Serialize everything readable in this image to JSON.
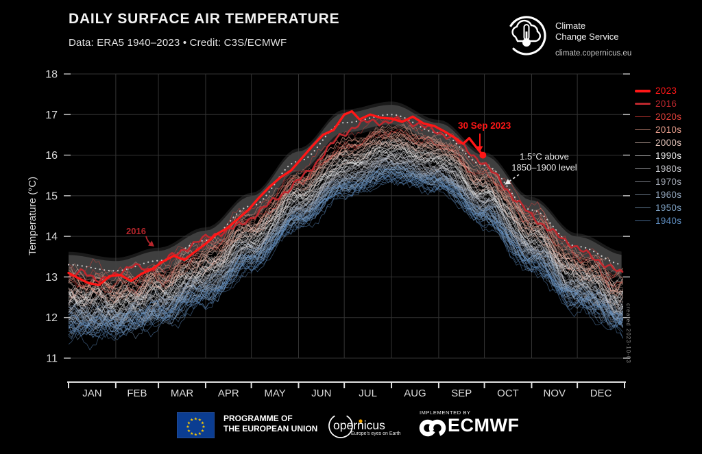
{
  "header": {
    "title": "DAILY SURFACE AIR TEMPERATURE",
    "subtitle": "Data: ERA5 1940–2023 • Credit: C3S/ECMWF"
  },
  "branding": {
    "logo_name": "Climate Change Service",
    "logo_line1": "Climate",
    "logo_line2": "Change Service",
    "url": "climate.copernicus.eu"
  },
  "watermark": "created 2023-10-03",
  "footer": {
    "eu_label_line1": "PROGRAMME OF",
    "eu_label_line2": "THE EUROPEAN UNION",
    "copernicus_name": "opernicus",
    "copernicus_tagline": "Europe's eyes on Earth",
    "implemented_by": "IMPLEMENTED BY",
    "ecmwf_name": "ECMWF"
  },
  "chart_data": {
    "type": "line",
    "title": "DAILY SURFACE AIR TEMPERATURE",
    "xlabel": "",
    "ylabel": "Temperature (°C)",
    "ylim": [
      11,
      18
    ],
    "yticks": [
      11,
      12,
      13,
      14,
      15,
      16,
      17,
      18
    ],
    "grid": true,
    "x_tick_labels": [
      "JAN",
      "FEB",
      "MAR",
      "APR",
      "MAY",
      "JUN",
      "JUL",
      "AUG",
      "SEP",
      "OCT",
      "NOV",
      "DEC"
    ],
    "month_start_days": [
      0,
      31,
      59,
      90,
      120,
      151,
      181,
      212,
      243,
      273,
      304,
      334,
      365
    ],
    "legend_position": "right",
    "legend": [
      {
        "label": "2023",
        "color": "#ff1717",
        "line_weight": 4
      },
      {
        "label": "2016",
        "color": "#bb272d",
        "line_weight": 3
      },
      {
        "label": "2020s",
        "color": "#e2403a",
        "line_weight": 1
      },
      {
        "label": "2010s",
        "color": "#e59c8a",
        "line_weight": 1
      },
      {
        "label": "2000s",
        "color": "#e2c3b9",
        "line_weight": 1
      },
      {
        "label": "1990s",
        "color": "#ededed",
        "line_weight": 1
      },
      {
        "label": "1980s",
        "color": "#c8c9ce",
        "line_weight": 1
      },
      {
        "label": "1970s",
        "color": "#a4aab6",
        "line_weight": 1
      },
      {
        "label": "1960s",
        "color": "#93a6bd",
        "line_weight": 1
      },
      {
        "label": "1950s",
        "color": "#7fa3c6",
        "line_weight": 1
      },
      {
        "label": "1940s",
        "color": "#5f8ec2",
        "line_weight": 1
      }
    ],
    "band_1p5": {
      "label": "1.5°C above 1850–1900 level",
      "anchors_day": [
        0,
        31,
        59,
        90,
        120,
        151,
        181,
        212,
        243,
        273,
        304,
        334,
        365
      ],
      "center_temp": [
        13.3,
        13.15,
        13.4,
        13.9,
        14.75,
        15.85,
        16.8,
        17.0,
        16.55,
        15.75,
        14.65,
        13.75,
        13.3
      ],
      "half_width": 0.24,
      "fill_color": "#414141",
      "dotted_center_color": "#d9d9d9"
    },
    "series": [
      {
        "name": "2023",
        "color": "#ff1717",
        "width": 3.4,
        "end_dot": true,
        "last_day_label": "30 Sep 2023",
        "days": [
          0,
          6,
          13,
          20,
          27,
          34,
          41,
          48,
          55,
          62,
          69,
          76,
          83,
          90,
          97,
          104,
          111,
          118,
          125,
          132,
          139,
          146,
          153,
          160,
          167,
          174,
          181,
          186,
          191,
          198,
          205,
          212,
          219,
          226,
          233,
          240,
          247,
          254,
          259,
          263,
          268,
          272
        ],
        "values": [
          13.1,
          12.98,
          12.85,
          12.8,
          13.02,
          13.05,
          12.9,
          13.08,
          13.2,
          13.38,
          13.52,
          13.42,
          13.62,
          13.82,
          14.05,
          14.2,
          14.42,
          14.65,
          14.95,
          15.22,
          15.45,
          15.62,
          15.92,
          16.22,
          16.5,
          16.62,
          17.0,
          17.08,
          16.88,
          17.0,
          16.92,
          16.9,
          16.82,
          16.95,
          16.78,
          16.72,
          16.58,
          16.42,
          16.28,
          16.42,
          16.18,
          16.0
        ]
      },
      {
        "name": "2016",
        "color": "#c0282e",
        "width": 2.6,
        "end_dot": false,
        "days": [
          0,
          10,
          21,
          31,
          41,
          52,
          62,
          73,
          83,
          93,
          104,
          114,
          125,
          135,
          146,
          156,
          167,
          177,
          188,
          198,
          209,
          219,
          230,
          240,
          251,
          261,
          272,
          282,
          293,
          303,
          314,
          324,
          335,
          345,
          356,
          364
        ],
        "values": [
          12.95,
          13.15,
          12.9,
          13.05,
          13.3,
          13.15,
          13.4,
          13.6,
          13.85,
          14.0,
          14.15,
          14.3,
          14.6,
          14.9,
          15.2,
          15.55,
          16.0,
          16.45,
          16.7,
          16.85,
          16.8,
          16.88,
          16.75,
          16.6,
          16.45,
          16.15,
          15.8,
          15.45,
          14.9,
          14.55,
          14.2,
          13.95,
          13.7,
          13.45,
          13.25,
          13.05
        ]
      }
    ],
    "decades": [
      {
        "name": "1940s",
        "color": "#5f8ec2",
        "offset": -0.56,
        "num_years": 10
      },
      {
        "name": "1950s",
        "color": "#7fa3c6",
        "offset": -0.46,
        "num_years": 10
      },
      {
        "name": "1960s",
        "color": "#93a6bd",
        "offset": -0.36,
        "num_years": 10
      },
      {
        "name": "1970s",
        "color": "#a4aab6",
        "offset": -0.22,
        "num_years": 10
      },
      {
        "name": "1980s",
        "color": "#c8c9ce",
        "offset": -0.05,
        "num_years": 10
      },
      {
        "name": "1990s",
        "color": "#ededed",
        "offset": 0.12,
        "num_years": 10
      },
      {
        "name": "2000s",
        "color": "#e2c3b9",
        "offset": 0.3,
        "num_years": 10
      },
      {
        "name": "2010s",
        "color": "#e59c8a",
        "offset": 0.5,
        "num_years": 10
      },
      {
        "name": "2020s",
        "color": "#e2403a",
        "offset": 0.65,
        "num_years": 3
      }
    ],
    "climatology_anchors_day": [
      0,
      31,
      59,
      90,
      120,
      151,
      181,
      212,
      243,
      273,
      304,
      334,
      365
    ],
    "climatology_base_temp": [
      12.35,
      12.3,
      12.55,
      13.1,
      13.9,
      14.9,
      15.7,
      16.05,
      15.8,
      15.0,
      13.9,
      12.95,
      12.4
    ],
    "annotations": [
      {
        "id": "ann_2023_end",
        "text": "30 Sep 2023",
        "target_day": 272,
        "target_temp": 16.0
      },
      {
        "id": "ann_band",
        "line1": "1.5°C above",
        "line2": "1850–1900 level"
      },
      {
        "id": "ann_2016",
        "text": "2016",
        "target_day": 80,
        "target_temp": 13.85
      }
    ]
  }
}
